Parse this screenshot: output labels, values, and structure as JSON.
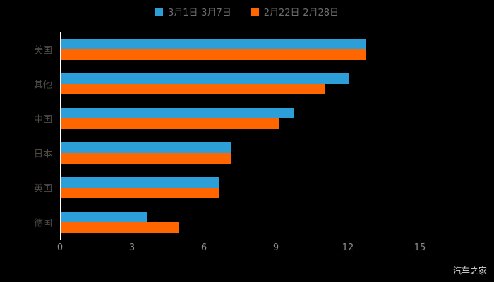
{
  "background": "#000000",
  "watermark": "汽车之家",
  "legend": {
    "items": [
      {
        "label": "3月1日-3月7日",
        "color": "#2d9fd8"
      },
      {
        "label": "2月22日-2月28日",
        "color": "#ff6600"
      }
    ]
  },
  "chart_data": {
    "type": "bar",
    "orientation": "horizontal",
    "title": "",
    "xlabel": "",
    "ylabel": "",
    "categories": [
      "美国",
      "其他",
      "中国",
      "日本",
      "英国",
      "德国"
    ],
    "series": [
      {
        "name": "3月1日-3月7日",
        "color": "#2d9fd8",
        "values": [
          12.7,
          12.0,
          9.7,
          7.1,
          6.6,
          3.6
        ]
      },
      {
        "name": "2月22日-2月28日",
        "color": "#ff6600",
        "values": [
          12.7,
          11.0,
          9.1,
          7.1,
          6.6,
          4.9
        ]
      }
    ],
    "xlim": [
      0,
      15
    ],
    "xticks": [
      0,
      3,
      6,
      9,
      12,
      15
    ],
    "grid": true,
    "grid_color": "#ffffff",
    "axis_color": "#ffffff",
    "legend_position": "top"
  }
}
